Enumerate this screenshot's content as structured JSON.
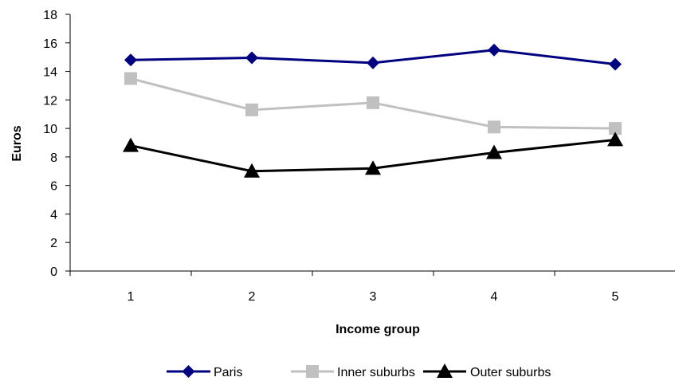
{
  "chart_data": {
    "type": "line",
    "title": "",
    "xlabel": "Income group",
    "ylabel": "Euros",
    "categories": [
      "1",
      "2",
      "3",
      "4",
      "5"
    ],
    "ylim": [
      0,
      18
    ],
    "yticks": [
      "0",
      "2",
      "4",
      "6",
      "8",
      "10",
      "12",
      "14",
      "16",
      "18"
    ],
    "grid": false,
    "legend_position": "bottom",
    "series": [
      {
        "name": "Paris",
        "values": [
          14.8,
          14.95,
          14.6,
          15.5,
          14.5
        ],
        "color": "#000080",
        "marker": "diamond"
      },
      {
        "name": "Inner suburbs",
        "values": [
          13.5,
          11.3,
          11.8,
          10.1,
          10.0
        ],
        "color": "#c0c0c0",
        "marker": "square"
      },
      {
        "name": "Outer suburbs",
        "values": [
          8.8,
          7.0,
          7.2,
          8.3,
          9.2
        ],
        "color": "#000000",
        "marker": "triangle"
      }
    ]
  }
}
